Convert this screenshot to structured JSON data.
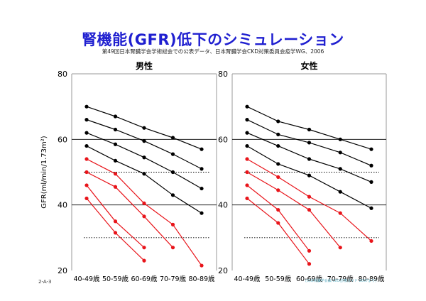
{
  "slide": {
    "title": "腎機能(GFR)低下のシミュレーション",
    "source": "第49回日本腎臓学会学術総会での公表データ、日本腎臓学会CKD対策委員会疫学WG、2006",
    "slide_number": "2-A-3",
    "footer_note": "(日本腎臓学会編 CKD診療ガイド 2007より)"
  },
  "colors": {
    "black_series": "#000000",
    "red_series": "#e8141a",
    "grid": "#000000",
    "reference": "#000000",
    "frame": "#9a9a9a"
  },
  "chart_data": [
    {
      "type": "line",
      "title": "男性",
      "ylabel": "GFR(ml/min/1.73m²)",
      "ylim": [
        20,
        80
      ],
      "yticks": [
        20,
        40,
        60,
        80
      ],
      "gridlines": [
        40,
        60
      ],
      "reference_lines": [
        50,
        30
      ],
      "categories": [
        "40-49歳",
        "50-59歳",
        "60-69歳",
        "70-79歳",
        "80-89歳"
      ],
      "series": [
        {
          "color": "black",
          "values": [
            70,
            67,
            63.5,
            60.5,
            57
          ]
        },
        {
          "color": "black",
          "values": [
            66,
            63,
            59.5,
            55.5,
            51
          ]
        },
        {
          "color": "black",
          "values": [
            62,
            58.5,
            54.5,
            50,
            45
          ]
        },
        {
          "color": "black",
          "values": [
            58,
            53.5,
            49.5,
            43,
            37.5
          ]
        },
        {
          "color": "red",
          "values": [
            54,
            49.5,
            40.5,
            34,
            21.5
          ]
        },
        {
          "color": "red",
          "values": [
            50,
            45.5,
            36.5,
            27,
            null
          ]
        },
        {
          "color": "red",
          "values": [
            46,
            35,
            27,
            null,
            null
          ]
        },
        {
          "color": "red",
          "values": [
            42,
            31.5,
            23,
            null,
            null
          ]
        }
      ]
    },
    {
      "type": "line",
      "title": "女性",
      "ylabel": "",
      "ylim": [
        20,
        80
      ],
      "yticks": [
        20,
        40,
        60,
        80
      ],
      "gridlines": [
        40,
        60
      ],
      "reference_lines": [
        50,
        30
      ],
      "categories": [
        "40-49歳",
        "50-59歳",
        "60-69歳",
        "70-79歳",
        "80-89歳"
      ],
      "series": [
        {
          "color": "black",
          "values": [
            70,
            65.5,
            63,
            60,
            57
          ]
        },
        {
          "color": "black",
          "values": [
            66,
            61.5,
            59,
            56,
            52
          ]
        },
        {
          "color": "black",
          "values": [
            62,
            58,
            54,
            51,
            47
          ]
        },
        {
          "color": "black",
          "values": [
            58,
            52.5,
            49,
            44,
            39
          ]
        },
        {
          "color": "red",
          "values": [
            54,
            48.5,
            42.5,
            37.5,
            29
          ]
        },
        {
          "color": "red",
          "values": [
            50,
            44.5,
            38.5,
            27,
            null
          ]
        },
        {
          "color": "red",
          "values": [
            46,
            38.5,
            26,
            null,
            null
          ]
        },
        {
          "color": "red",
          "values": [
            42,
            34.5,
            22,
            null,
            null
          ]
        }
      ]
    }
  ]
}
